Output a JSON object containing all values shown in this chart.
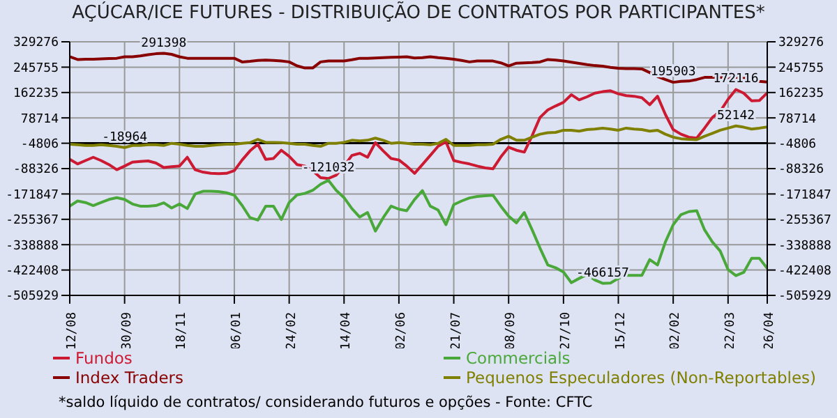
{
  "chart_data": {
    "type": "line",
    "title": "AÇÚCAR/ICE FUTURES - DISTRIBUIÇÃO DE CONTRATOS POR PARTICIPANTES*",
    "categories": [
      "12/08",
      null,
      null,
      null,
      null,
      null,
      null,
      "30/09",
      null,
      null,
      null,
      null,
      null,
      null,
      "18/11",
      null,
      null,
      null,
      null,
      null,
      null,
      "06/01",
      null,
      null,
      null,
      null,
      null,
      null,
      "24/02",
      null,
      null,
      null,
      null,
      null,
      null,
      "14/04",
      null,
      null,
      null,
      null,
      null,
      null,
      "02/06",
      null,
      null,
      null,
      null,
      null,
      null,
      "21/07",
      null,
      null,
      null,
      null,
      null,
      null,
      "08/09",
      null,
      null,
      null,
      null,
      null,
      null,
      "27/10",
      null,
      null,
      null,
      null,
      null,
      null,
      "15/12",
      null,
      null,
      null,
      null,
      null,
      null,
      "02/02",
      null,
      null,
      null,
      null,
      null,
      null,
      "22/03",
      null,
      null,
      null,
      null,
      "26/04"
    ],
    "series": [
      {
        "name": "Fundos",
        "color": "#cc1a33",
        "values": [
          -58000,
          -73000,
          -62000,
          -51000,
          -62000,
          -75000,
          -92000,
          -80000,
          -67000,
          -65000,
          -63000,
          -70000,
          -85000,
          -82000,
          -80000,
          -51000,
          -92000,
          -100000,
          -104000,
          -105000,
          -104000,
          -95000,
          -60000,
          -30000,
          -8000,
          -58000,
          -55000,
          -28000,
          -48000,
          -75000,
          -80000,
          -95000,
          -118000,
          -121032,
          -110000,
          -80000,
          -45000,
          -38000,
          -51000,
          -3000,
          -30000,
          -55000,
          -60000,
          -80000,
          -104000,
          -75000,
          -45000,
          -15000,
          0,
          -62000,
          -68000,
          -73000,
          -80000,
          -86000,
          -89000,
          -50000,
          -18000,
          -28000,
          -34000,
          20000,
          80000,
          105000,
          118000,
          130000,
          155000,
          138000,
          148000,
          160000,
          165000,
          168000,
          158000,
          152000,
          150000,
          145000,
          122000,
          150000,
          90000,
          40000,
          25000,
          15000,
          12000,
          45000,
          80000,
          100000,
          140000,
          172116,
          160000,
          135000,
          136000,
          161000
        ],
        "value_labels": [
          null,
          null,
          null,
          null,
          null,
          null,
          null,
          null,
          null,
          null,
          null,
          null,
          null,
          null,
          null,
          null,
          null,
          null,
          null,
          null,
          null,
          null,
          null,
          null,
          null,
          null,
          null,
          null,
          null,
          null,
          null,
          null,
          null,
          "-121032",
          null,
          null,
          null,
          null,
          null,
          null,
          null,
          null,
          null,
          null,
          null,
          null,
          null,
          null,
          null,
          null,
          null,
          null,
          null,
          null,
          null,
          null,
          null,
          null,
          null,
          null,
          null,
          null,
          null,
          null,
          null,
          null,
          null,
          null,
          null,
          null,
          null,
          null,
          null,
          null,
          null,
          null,
          null,
          null,
          null,
          null,
          null,
          null,
          null,
          null,
          null,
          "172116",
          null,
          null,
          null,
          null
        ]
      },
      {
        "name": "Index Traders",
        "color": "#880000",
        "values": [
          280000,
          271000,
          272000,
          272000,
          273000,
          274000,
          275000,
          280000,
          280000,
          283000,
          287000,
          290000,
          291398,
          288000,
          280000,
          275000,
          275000,
          275000,
          275000,
          275000,
          275000,
          275000,
          263000,
          265000,
          268000,
          269000,
          268000,
          266000,
          263000,
          250000,
          243000,
          243000,
          263000,
          266000,
          266000,
          266000,
          270000,
          275000,
          275000,
          276000,
          277000,
          278000,
          279000,
          280000,
          276000,
          277000,
          280000,
          277000,
          275000,
          272000,
          268000,
          263000,
          266000,
          266000,
          266000,
          260000,
          250000,
          259000,
          260000,
          261000,
          263000,
          271000,
          269000,
          266000,
          262000,
          258000,
          254000,
          251000,
          249000,
          245000,
          242000,
          241000,
          241000,
          240000,
          228000,
          215000,
          205000,
          195903,
          199000,
          200000,
          205000,
          212000,
          212000,
          212000,
          212000,
          212000,
          211000,
          205000,
          199000,
          197000
        ],
        "value_labels": [
          null,
          null,
          null,
          null,
          null,
          null,
          null,
          null,
          null,
          null,
          null,
          null,
          "291398",
          null,
          null,
          null,
          null,
          null,
          null,
          null,
          null,
          null,
          null,
          null,
          null,
          null,
          null,
          null,
          null,
          null,
          null,
          null,
          null,
          null,
          null,
          null,
          null,
          null,
          null,
          null,
          null,
          null,
          null,
          null,
          null,
          null,
          null,
          null,
          null,
          null,
          null,
          null,
          null,
          null,
          null,
          null,
          null,
          null,
          null,
          null,
          null,
          null,
          null,
          null,
          null,
          null,
          null,
          null,
          null,
          null,
          null,
          null,
          null,
          null,
          null,
          null,
          null,
          "195903",
          null,
          null,
          null,
          null,
          null,
          null,
          null,
          null,
          null,
          null,
          null,
          null
        ]
      },
      {
        "name": "Commercials",
        "color": "#4aa83a",
        "values": [
          -212000,
          -195000,
          -200000,
          -210000,
          -200000,
          -190000,
          -184000,
          -190000,
          -205000,
          -212000,
          -212000,
          -210000,
          -201000,
          -218000,
          -205000,
          -220000,
          -172000,
          -163000,
          -163000,
          -164000,
          -168000,
          -176000,
          -210000,
          -250000,
          -258000,
          -212000,
          -212000,
          -256000,
          -200000,
          -175000,
          -170000,
          -160000,
          -140000,
          -127000,
          -160000,
          -184000,
          -220000,
          -248000,
          -233000,
          -294000,
          -250000,
          -212000,
          -222000,
          -227000,
          -190000,
          -161000,
          -212000,
          -225000,
          -273000,
          -207000,
          -195000,
          -185000,
          -180000,
          -178000,
          -176000,
          -212000,
          -245000,
          -267000,
          -233000,
          -290000,
          -350000,
          -406000,
          -415000,
          -429000,
          -464000,
          -450000,
          -437000,
          -455000,
          -466157,
          -465000,
          -450000,
          -440000,
          -440000,
          -440000,
          -388000,
          -406000,
          -330000,
          -273000,
          -240000,
          -230000,
          -227000,
          -290000,
          -330000,
          -360000,
          -421000,
          -441000,
          -430000,
          -384000,
          -384000,
          -417000
        ],
        "value_labels": [
          null,
          null,
          null,
          null,
          null,
          null,
          null,
          null,
          null,
          null,
          null,
          null,
          null,
          null,
          null,
          null,
          null,
          null,
          null,
          null,
          null,
          null,
          null,
          null,
          null,
          null,
          null,
          null,
          null,
          null,
          null,
          null,
          null,
          null,
          null,
          null,
          null,
          null,
          null,
          null,
          null,
          null,
          null,
          null,
          null,
          null,
          null,
          null,
          null,
          null,
          null,
          null,
          null,
          null,
          null,
          null,
          null,
          null,
          null,
          null,
          null,
          null,
          null,
          null,
          null,
          null,
          null,
          null,
          "-466157",
          null,
          null,
          null,
          null,
          null,
          null,
          null,
          null,
          null,
          null,
          null,
          null,
          null,
          null,
          null,
          null,
          null,
          null,
          null,
          null,
          null
        ]
      },
      {
        "name": "Pequenos Especuladores (Non-Reportables)",
        "color": "#808000",
        "values": [
          -8000,
          -10000,
          -12000,
          -12000,
          -10000,
          -12000,
          -15000,
          -18964,
          -12000,
          -12000,
          -10000,
          -10000,
          -12000,
          -5000,
          -8000,
          -12000,
          -15000,
          -15000,
          -12000,
          -10000,
          -8000,
          -8000,
          -5000,
          -3000,
          8000,
          -2000,
          -2000,
          -3000,
          -5000,
          -8000,
          -8000,
          -12000,
          -15000,
          -5000,
          -5000,
          -2000,
          5000,
          3000,
          5000,
          12000,
          5000,
          -5000,
          -3000,
          -5000,
          -8000,
          -8000,
          -10000,
          -5000,
          8000,
          -12000,
          -12000,
          -12000,
          -10000,
          -10000,
          -8000,
          8000,
          18000,
          5000,
          5000,
          15000,
          25000,
          30000,
          31000,
          38000,
          38000,
          35000,
          40000,
          42000,
          45000,
          42000,
          38000,
          45000,
          42000,
          40000,
          35000,
          38000,
          25000,
          15000,
          10000,
          8000,
          7000,
          18000,
          28000,
          38000,
          45000,
          52142,
          48000,
          42000,
          45000,
          49000
        ],
        "value_labels": [
          null,
          null,
          null,
          null,
          null,
          null,
          null,
          "-18964",
          null,
          null,
          null,
          null,
          null,
          null,
          null,
          null,
          null,
          null,
          null,
          null,
          null,
          null,
          null,
          null,
          null,
          null,
          null,
          null,
          null,
          null,
          null,
          null,
          null,
          null,
          null,
          null,
          null,
          null,
          null,
          null,
          null,
          null,
          null,
          null,
          null,
          null,
          null,
          null,
          null,
          null,
          null,
          null,
          null,
          null,
          null,
          null,
          null,
          null,
          null,
          null,
          null,
          null,
          null,
          null,
          null,
          null,
          null,
          null,
          null,
          null,
          null,
          null,
          null,
          null,
          null,
          null,
          null,
          null,
          null,
          null,
          null,
          null,
          null,
          null,
          null,
          "52142",
          null,
          null,
          null,
          null
        ]
      }
    ],
    "ylim": [
      -505929,
      329276
    ],
    "yticks": [
      -505929,
      -422408,
      -338888,
      -255367,
      -171847,
      -88326,
      -4806,
      78714,
      162235,
      245755,
      329276
    ],
    "y2lim": [
      -505929,
      329276
    ],
    "y2ticks": [
      -505929,
      -422408,
      -338888,
      -255367,
      -171847,
      -88326,
      -4806,
      78714,
      162235,
      245755,
      329276
    ],
    "ref_lines": [
      {
        "axis": "y",
        "value": -4806,
        "color": "#000000"
      }
    ],
    "grid": true,
    "legend": "bottom",
    "marker": "none",
    "line_style": "solid",
    "annotations": [
      "*saldo líquido de contratos/ considerando futuros e opções - Fonte: CFTC"
    ]
  }
}
